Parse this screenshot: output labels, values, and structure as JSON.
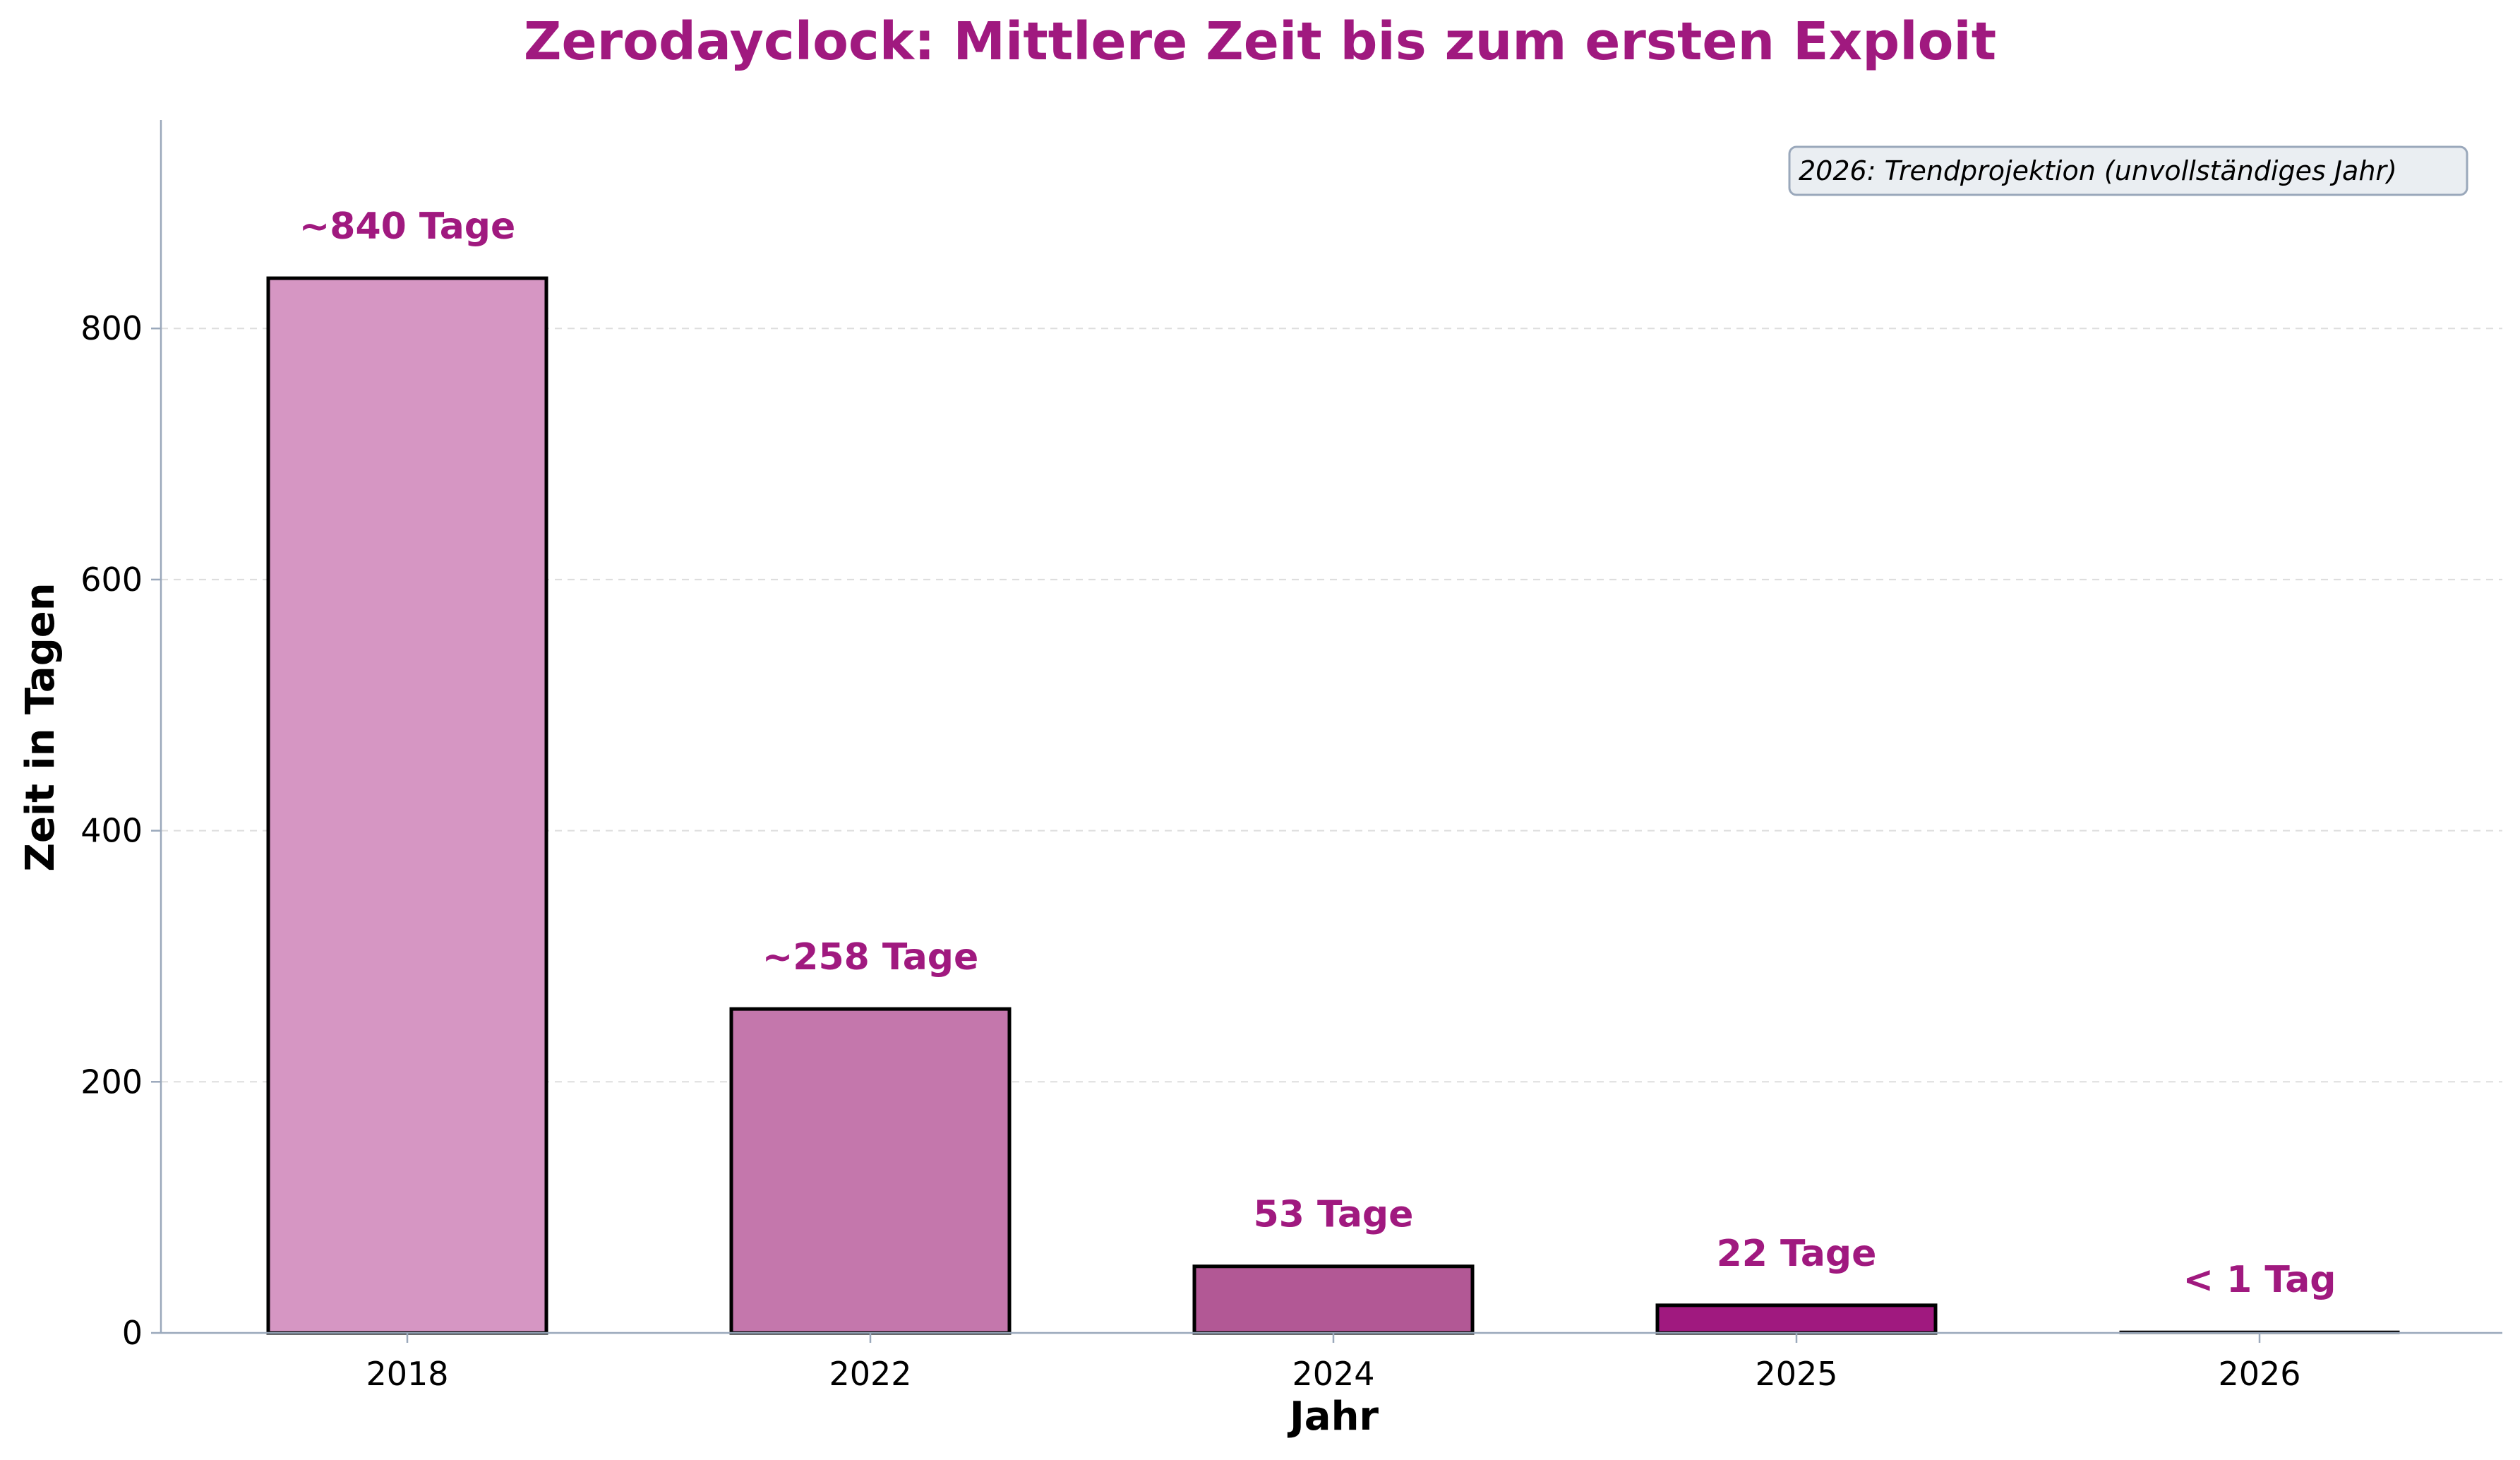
{
  "chart_data": {
    "type": "bar",
    "title": "Zerodayclock: Mittlere Zeit bis zum ersten Exploit",
    "xlabel": "Jahr",
    "ylabel": "Zeit in Tagen",
    "categories": [
      "2018",
      "2022",
      "2024",
      "2025",
      "2026"
    ],
    "values": [
      840,
      258,
      53,
      22,
      1
    ],
    "data_labels": [
      "~840 Tage",
      "~258 Tage",
      "53 Tage",
      "22 Tage",
      "< 1 Tag"
    ],
    "ylim": [
      0,
      966
    ],
    "yticks": [
      0,
      200,
      400,
      600,
      800
    ],
    "grid": "y, dashed",
    "legend": "none",
    "annotation": "2026: Trendprojektion (unvollständiges Jahr)",
    "annotation_position": "top-right",
    "bar_colors": [
      "#d696c3",
      "#c477ac",
      "#b25895",
      "#a0197f",
      "#f0e4ee"
    ],
    "accent_color": "#a0197f",
    "bar_edge_color": "#000000",
    "axis_color": "#9aa8bb",
    "grid_color": "#dddddd",
    "annotation_bg": "#eaeef2",
    "annotation_border": "#9aa8bb"
  }
}
